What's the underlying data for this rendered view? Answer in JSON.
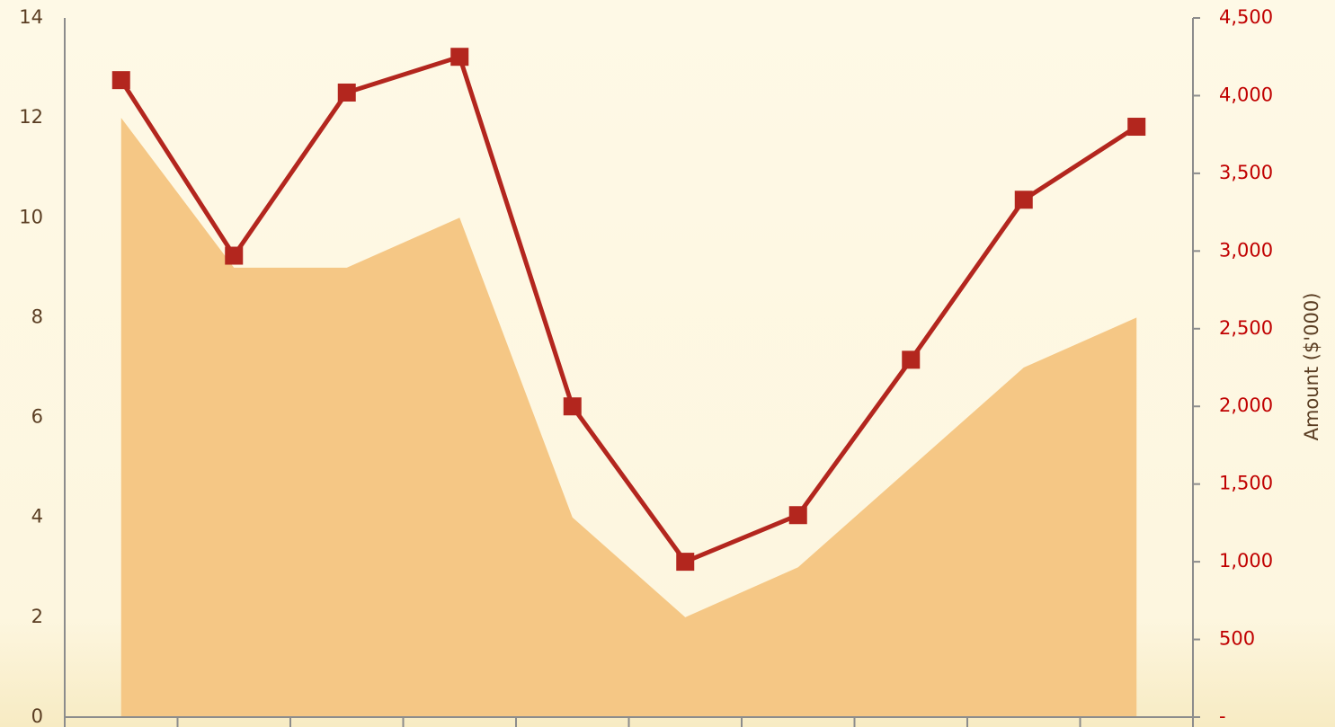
{
  "chart_data": {
    "type": "area-line",
    "categories": [
      null,
      null,
      null,
      null,
      null,
      null,
      null,
      null,
      null,
      null
    ],
    "series": [
      {
        "type": "area",
        "color": "#f5c785",
        "values": [
          12,
          9,
          9,
          10,
          4,
          2,
          3,
          5,
          7,
          8
        ]
      },
      {
        "type": "line",
        "axis": "y2",
        "color": "#b3261e",
        "values": [
          4100,
          2970,
          4020,
          4250,
          2000,
          1000,
          1300,
          2300,
          3330,
          3800
        ]
      }
    ],
    "ylim": [
      0,
      14
    ],
    "yticks": [
      0,
      2,
      4,
      6,
      8,
      10,
      12,
      14
    ],
    "y2lim": [
      0,
      4500
    ],
    "y2ticks": [
      {
        "value": 0,
        "label": "-"
      },
      500,
      {
        "value": 1000,
        "label": "1,000"
      },
      {
        "value": 1500,
        "label": "1,500"
      },
      {
        "value": 2000,
        "label": "2,000"
      },
      {
        "value": 2500,
        "label": "2,500"
      },
      {
        "value": 3000,
        "label": "3,000"
      },
      {
        "value": 3500,
        "label": "3,500"
      },
      {
        "value": 4000,
        "label": "4,000"
      },
      {
        "value": 4500,
        "label": "4,500"
      }
    ],
    "y2label": "Amount ($'000)"
  }
}
